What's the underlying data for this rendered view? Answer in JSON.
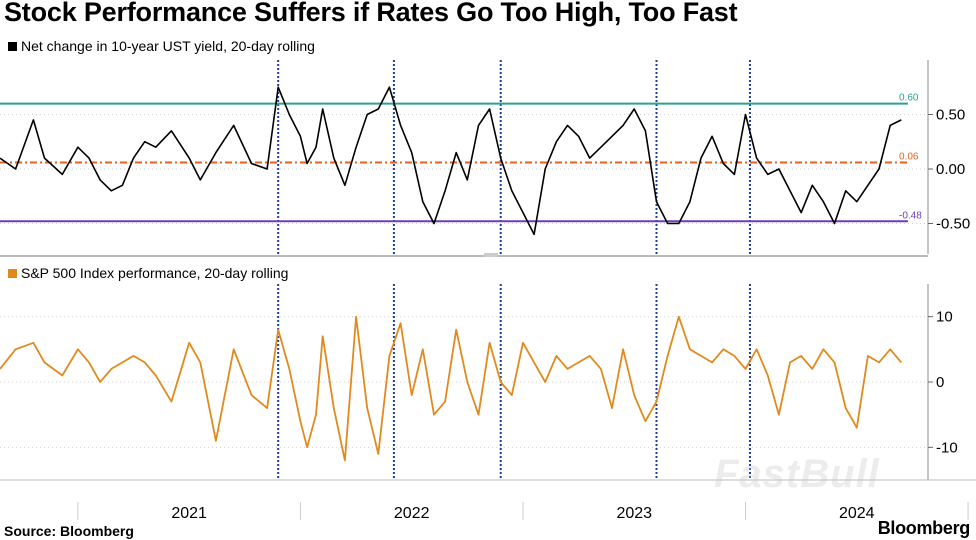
{
  "title": "Stock Performance Suffers if Rates Go Too High, Too Fast",
  "source": "Source: Bloomberg",
  "brand": "Bloomberg",
  "watermark": "FastBull",
  "colors": {
    "yield_line": "#000000",
    "spx_line": "#e08a1e",
    "teal": "#2aa198",
    "orange_ref": "#e8601c",
    "purple": "#6a3fb5",
    "vline": "#1f3f9e"
  },
  "chart_data": [
    {
      "type": "line",
      "title": "",
      "legend": "Net change in 10-year UST yield, 20-day rolling",
      "ylim": [
        -0.78,
        1.0
      ],
      "yticks": [
        0.5,
        0.0,
        -0.5
      ],
      "ytick_labels": [
        "0.50",
        "0.00",
        "-0.50"
      ],
      "reference_lines": [
        {
          "value": 0.6,
          "label": "0.60",
          "color": "#2aa198"
        },
        {
          "value": 0.06,
          "label": "0.06",
          "color": "#e8601c"
        },
        {
          "value": -0.48,
          "label": "-0.48",
          "color": "#6a3fb5"
        }
      ],
      "series": [
        {
          "x": [
            2020.65,
            2020.72,
            2020.8,
            2020.85,
            2020.93,
            2021.0,
            2021.05,
            2021.1,
            2021.15,
            2021.2,
            2021.25,
            2021.3,
            2021.35,
            2021.42,
            2021.5,
            2021.55,
            2021.62,
            2021.7,
            2021.78,
            2021.85,
            2021.9,
            2021.95,
            2022.0,
            2022.03,
            2022.07,
            2022.1,
            2022.15,
            2022.2,
            2022.25,
            2022.3,
            2022.35,
            2022.4,
            2022.45,
            2022.5,
            2022.55,
            2022.6,
            2022.65,
            2022.7,
            2022.75,
            2022.8,
            2022.85,
            2022.9,
            2022.95,
            2023.0,
            2023.05,
            2023.1,
            2023.15,
            2023.2,
            2023.25,
            2023.3,
            2023.35,
            2023.4,
            2023.45,
            2023.5,
            2023.55,
            2023.6,
            2023.65,
            2023.7,
            2023.75,
            2023.8,
            2023.85,
            2023.9,
            2023.95,
            2024.0,
            2024.05,
            2024.1,
            2024.15,
            2024.2,
            2024.25,
            2024.3,
            2024.35,
            2024.4,
            2024.45,
            2024.5,
            2024.55,
            2024.6,
            2024.65,
            2024.7
          ],
          "values": [
            0.1,
            0.0,
            0.45,
            0.1,
            -0.05,
            0.2,
            0.1,
            -0.1,
            -0.2,
            -0.15,
            0.1,
            0.25,
            0.2,
            0.35,
            0.1,
            -0.1,
            0.15,
            0.4,
            0.05,
            0.0,
            0.75,
            0.5,
            0.3,
            0.05,
            0.2,
            0.55,
            0.1,
            -0.15,
            0.2,
            0.5,
            0.55,
            0.75,
            0.4,
            0.15,
            -0.3,
            -0.5,
            -0.2,
            0.15,
            -0.1,
            0.4,
            0.55,
            0.1,
            -0.2,
            -0.4,
            -0.6,
            0.0,
            0.25,
            0.4,
            0.3,
            0.1,
            0.2,
            0.3,
            0.4,
            0.55,
            0.35,
            -0.3,
            -0.5,
            -0.5,
            -0.3,
            0.1,
            0.3,
            0.05,
            -0.05,
            0.5,
            0.1,
            -0.05,
            0.0,
            -0.2,
            -0.4,
            -0.15,
            -0.3,
            -0.5,
            -0.2,
            -0.3,
            -0.15,
            0.0,
            0.4,
            0.45
          ]
        }
      ]
    },
    {
      "type": "line",
      "title": "",
      "legend": "S&P 500 Index performance, 20-day rolling",
      "ylim": [
        -15,
        15
      ],
      "yticks": [
        10,
        0,
        -10
      ],
      "ytick_labels": [
        "10",
        "0",
        "-10"
      ],
      "series": [
        {
          "x": [
            2020.65,
            2020.72,
            2020.8,
            2020.85,
            2020.93,
            2021.0,
            2021.05,
            2021.1,
            2021.15,
            2021.2,
            2021.25,
            2021.3,
            2021.35,
            2021.42,
            2021.5,
            2021.55,
            2021.62,
            2021.7,
            2021.78,
            2021.85,
            2021.9,
            2021.95,
            2022.0,
            2022.03,
            2022.07,
            2022.1,
            2022.15,
            2022.2,
            2022.25,
            2022.3,
            2022.35,
            2022.4,
            2022.45,
            2022.5,
            2022.55,
            2022.6,
            2022.65,
            2022.7,
            2022.75,
            2022.8,
            2022.85,
            2022.9,
            2022.95,
            2023.0,
            2023.05,
            2023.1,
            2023.15,
            2023.2,
            2023.25,
            2023.3,
            2023.35,
            2023.4,
            2023.45,
            2023.5,
            2023.55,
            2023.6,
            2023.65,
            2023.7,
            2023.75,
            2023.8,
            2023.85,
            2023.9,
            2023.95,
            2024.0,
            2024.05,
            2024.1,
            2024.15,
            2024.2,
            2024.25,
            2024.3,
            2024.35,
            2024.4,
            2024.45,
            2024.5,
            2024.55,
            2024.6,
            2024.65,
            2024.7
          ],
          "values": [
            2,
            5,
            6,
            3,
            1,
            5,
            3,
            0,
            2,
            3,
            4,
            3,
            1,
            -3,
            6,
            3,
            -9,
            5,
            -2,
            -4,
            8,
            2,
            -6,
            -10,
            -5,
            7,
            -4,
            -12,
            10,
            -4,
            -11,
            4,
            9,
            -2,
            5,
            -5,
            -3,
            8,
            0,
            -5,
            6,
            0,
            -2,
            6,
            3,
            0,
            4,
            2,
            3,
            4,
            2,
            -4,
            5,
            -2,
            -6,
            -3,
            4,
            10,
            5,
            4,
            3,
            5,
            4,
            2,
            5,
            1,
            -5,
            3,
            4,
            2,
            5,
            3,
            -4,
            -7,
            4,
            3,
            5,
            3
          ]
        }
      ]
    },
    {
      "type": "line",
      "title": "",
      "x_categories": [
        "2021",
        "2022",
        "2023",
        "2024"
      ],
      "xlim": [
        2020.65,
        2024.82
      ],
      "highlight_dates": [
        2021.9,
        2022.42,
        2022.9,
        2023.6,
        2024.02
      ],
      "grid": false
    }
  ]
}
